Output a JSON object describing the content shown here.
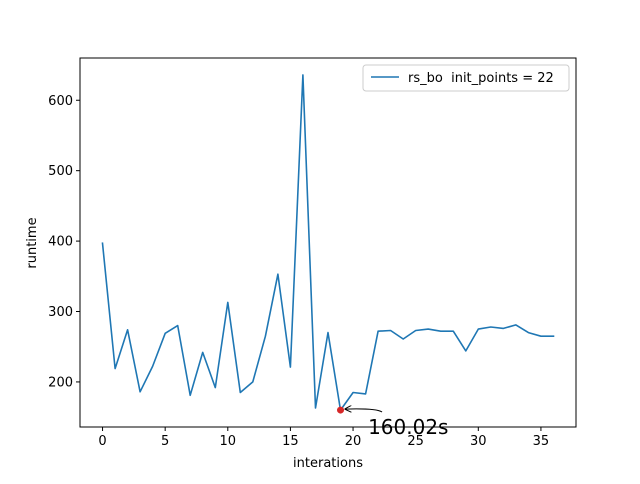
{
  "chart_data": {
    "type": "line",
    "title": "",
    "xlabel": "interations",
    "ylabel": "runtime",
    "xlim": [
      -1.8,
      37.8
    ],
    "ylim": [
      136,
      660
    ],
    "xticks": [
      0,
      5,
      10,
      15,
      20,
      25,
      30,
      35
    ],
    "yticks": [
      200,
      300,
      400,
      500,
      600
    ],
    "legend": {
      "position": "top-right",
      "label": "rs_bo  init_points = 22"
    },
    "series": [
      {
        "name": "rs_bo  init_points = 22",
        "color": "#1f77b4",
        "x": [
          0,
          1,
          2,
          3,
          4,
          5,
          6,
          7,
          8,
          9,
          10,
          11,
          12,
          13,
          14,
          15,
          16,
          17,
          18,
          19,
          20,
          21,
          22,
          23,
          24,
          25,
          26,
          27,
          28,
          29,
          30,
          31,
          32,
          33,
          34,
          35,
          36
        ],
        "values": [
          397,
          219,
          274,
          186,
          222,
          269,
          280,
          181,
          242,
          192,
          313,
          185,
          200,
          265,
          353,
          221,
          636,
          163,
          270,
          160,
          185,
          183,
          272,
          273,
          261,
          273,
          275,
          272,
          272,
          244,
          275,
          278,
          276,
          281,
          270,
          265,
          265
        ]
      }
    ],
    "annotation": {
      "text": "160.02s",
      "point": {
        "x": 19,
        "y": 160.02
      },
      "marker_color": "#d62728",
      "text_at": {
        "x": 21.2,
        "y": 136
      }
    }
  }
}
